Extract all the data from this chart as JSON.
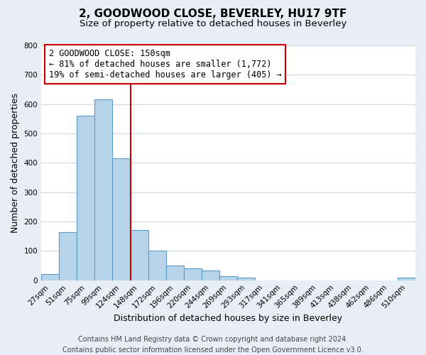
{
  "title": "2, GOODWOOD CLOSE, BEVERLEY, HU17 9TF",
  "subtitle": "Size of property relative to detached houses in Beverley",
  "xlabel": "Distribution of detached houses by size in Beverley",
  "ylabel": "Number of detached properties",
  "bar_labels": [
    "27sqm",
    "51sqm",
    "75sqm",
    "99sqm",
    "124sqm",
    "148sqm",
    "172sqm",
    "196sqm",
    "220sqm",
    "244sqm",
    "269sqm",
    "293sqm",
    "317sqm",
    "341sqm",
    "365sqm",
    "389sqm",
    "413sqm",
    "438sqm",
    "462sqm",
    "486sqm",
    "510sqm"
  ],
  "bar_heights": [
    20,
    165,
    560,
    615,
    415,
    170,
    100,
    50,
    40,
    33,
    13,
    10,
    0,
    0,
    0,
    0,
    0,
    0,
    0,
    0,
    8
  ],
  "bar_color": "#b8d4ea",
  "bar_edge_color": "#5a9cc8",
  "vline_color": "#cc0000",
  "annotation_line1": "2 GOODWOOD CLOSE: 150sqm",
  "annotation_line2": "← 81% of detached houses are smaller (1,772)",
  "annotation_line3": "19% of semi-detached houses are larger (405) →",
  "annotation_box_color": "white",
  "annotation_box_edge_color": "#cc0000",
  "ylim": [
    0,
    800
  ],
  "yticks": [
    0,
    100,
    200,
    300,
    400,
    500,
    600,
    700,
    800
  ],
  "footer_line1": "Contains HM Land Registry data © Crown copyright and database right 2024.",
  "footer_line2": "Contains public sector information licensed under the Open Government Licence v3.0.",
  "background_color": "#e8eef5",
  "plot_bg_color": "white",
  "grid_color": "#c8d4e0",
  "title_fontsize": 11,
  "subtitle_fontsize": 9.5,
  "axis_label_fontsize": 9,
  "tick_fontsize": 7.5,
  "annotation_fontsize": 8.5,
  "footer_fontsize": 7
}
